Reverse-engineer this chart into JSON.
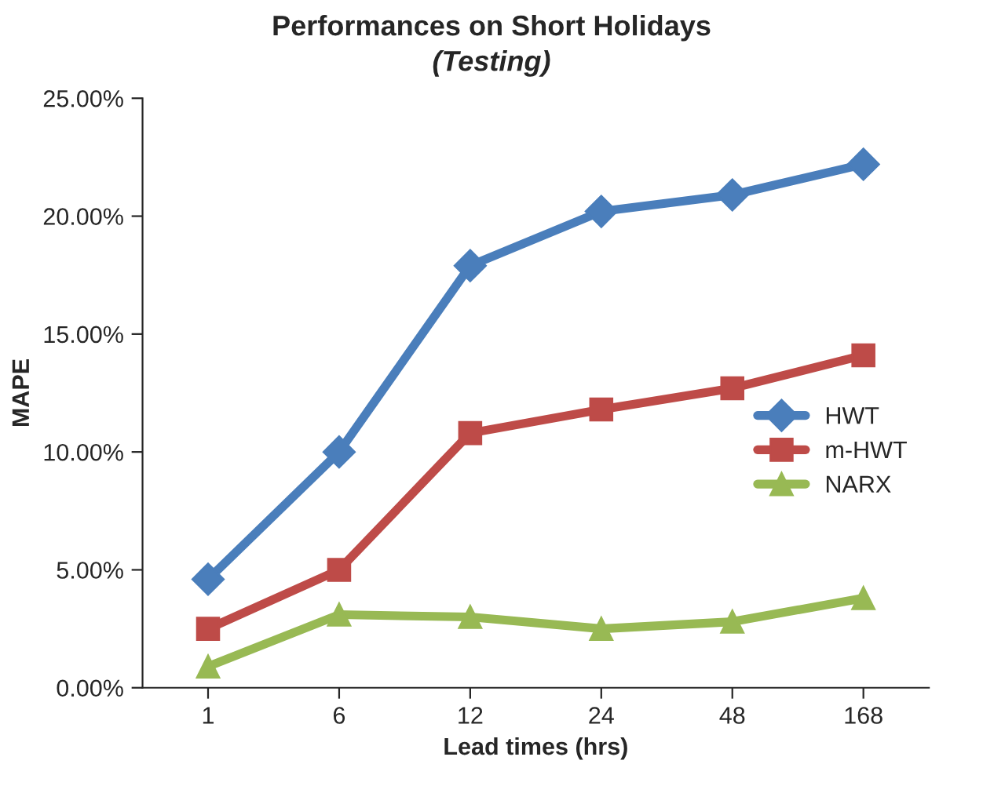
{
  "chart_data": {
    "type": "line",
    "title": "Performances on Short Holidays",
    "subtitle": "(Testing)",
    "xlabel": "Lead times (hrs)",
    "ylabel": "MAPE",
    "categories": [
      "1",
      "6",
      "12",
      "24",
      "48",
      "168"
    ],
    "series": [
      {
        "name": "HWT",
        "color": "#4a7ebb",
        "marker": "diamond",
        "values": [
          4.6,
          10.0,
          17.9,
          20.2,
          20.9,
          22.2
        ]
      },
      {
        "name": "m-HWT",
        "color": "#be4b48",
        "marker": "square",
        "values": [
          2.5,
          5.0,
          10.8,
          11.8,
          12.7,
          14.1
        ]
      },
      {
        "name": "NARX",
        "color": "#98b954",
        "marker": "triangle",
        "values": [
          0.9,
          3.1,
          3.0,
          2.5,
          2.8,
          3.8
        ]
      }
    ],
    "ylim": [
      0,
      25
    ],
    "yticks": [
      {
        "value": 0,
        "label": "0.00%"
      },
      {
        "value": 5,
        "label": "5.00%"
      },
      {
        "value": 10,
        "label": "10.00%"
      },
      {
        "value": 15,
        "label": "15.00%"
      },
      {
        "value": 20,
        "label": "20.00%"
      },
      {
        "value": 25,
        "label": "25.00%"
      }
    ],
    "legend": "center right",
    "grid": false
  }
}
